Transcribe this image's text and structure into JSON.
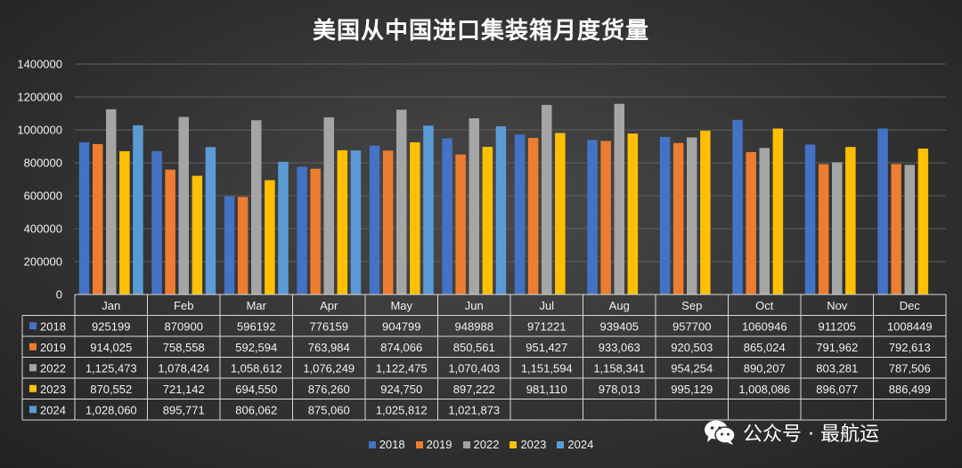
{
  "chart_data": {
    "type": "bar",
    "title": "美国从中国进口集装箱月度货量",
    "categories": [
      "Jan",
      "Feb",
      "Mar",
      "Apr",
      "May",
      "Jun",
      "Jul",
      "Aug",
      "Sep",
      "Oct",
      "Nov",
      "Dec"
    ],
    "ylim": [
      0,
      1400000
    ],
    "yticks": [
      "0",
      "200000",
      "400000",
      "600000",
      "800000",
      "1000000",
      "1200000",
      "1400000"
    ],
    "grid": true,
    "legend_position": "bottom",
    "series": [
      {
        "name": "2018",
        "color": "#4472c4",
        "values": [
          925199,
          870900,
          596192,
          776159,
          904799,
          948988,
          971221,
          939405,
          957700,
          1060946,
          911205,
          1008449
        ],
        "labels": [
          "925199",
          "870900",
          "596192",
          "776159",
          "904799",
          "948988",
          "971221",
          "939405",
          "957700",
          "1060946",
          "911205",
          "1008449"
        ]
      },
      {
        "name": "2019",
        "color": "#ed7d31",
        "values": [
          914025,
          758558,
          592594,
          763984,
          874066,
          850561,
          951427,
          933063,
          920503,
          865024,
          791962,
          792613
        ],
        "labels": [
          "914,025",
          "758,558",
          "592,594",
          "763,984",
          "874,066",
          "850,561",
          "951,427",
          "933,063",
          "920,503",
          "865,024",
          "791,962",
          "792,613"
        ]
      },
      {
        "name": "2022",
        "color": "#a5a5a5",
        "values": [
          1125473,
          1078424,
          1058612,
          1076249,
          1122475,
          1070403,
          1151594,
          1158341,
          954254,
          890207,
          803281,
          787506
        ],
        "labels": [
          "1,125,473",
          "1,078,424",
          "1,058,612",
          "1,076,249",
          "1,122,475",
          "1,070,403",
          "1,151,594",
          "1,158,341",
          "954,254",
          "890,207",
          "803,281",
          "787,506"
        ]
      },
      {
        "name": "2023",
        "color": "#ffc000",
        "values": [
          870552,
          721142,
          694550,
          876260,
          924750,
          897222,
          981110,
          978013,
          995129,
          1008086,
          896077,
          886499
        ],
        "labels": [
          "870,552",
          "721,142",
          "694,550",
          "876,260",
          "924,750",
          "897,222",
          "981,110",
          "978,013",
          "995,129",
          "1,008,086",
          "896,077",
          "886,499"
        ]
      },
      {
        "name": "2024",
        "color": "#5b9bd5",
        "values": [
          1028060,
          895771,
          806062,
          875060,
          1025812,
          1021873,
          null,
          null,
          null,
          null,
          null,
          null
        ],
        "labels": [
          "1,028,060",
          "895,771",
          "806,062",
          "875,060",
          "1,025,812",
          "1,021,873",
          "",
          "",
          "",
          "",
          "",
          ""
        ]
      }
    ]
  },
  "watermark": {
    "icon": "wechat-icon",
    "text": "公众号 · 最航运"
  }
}
